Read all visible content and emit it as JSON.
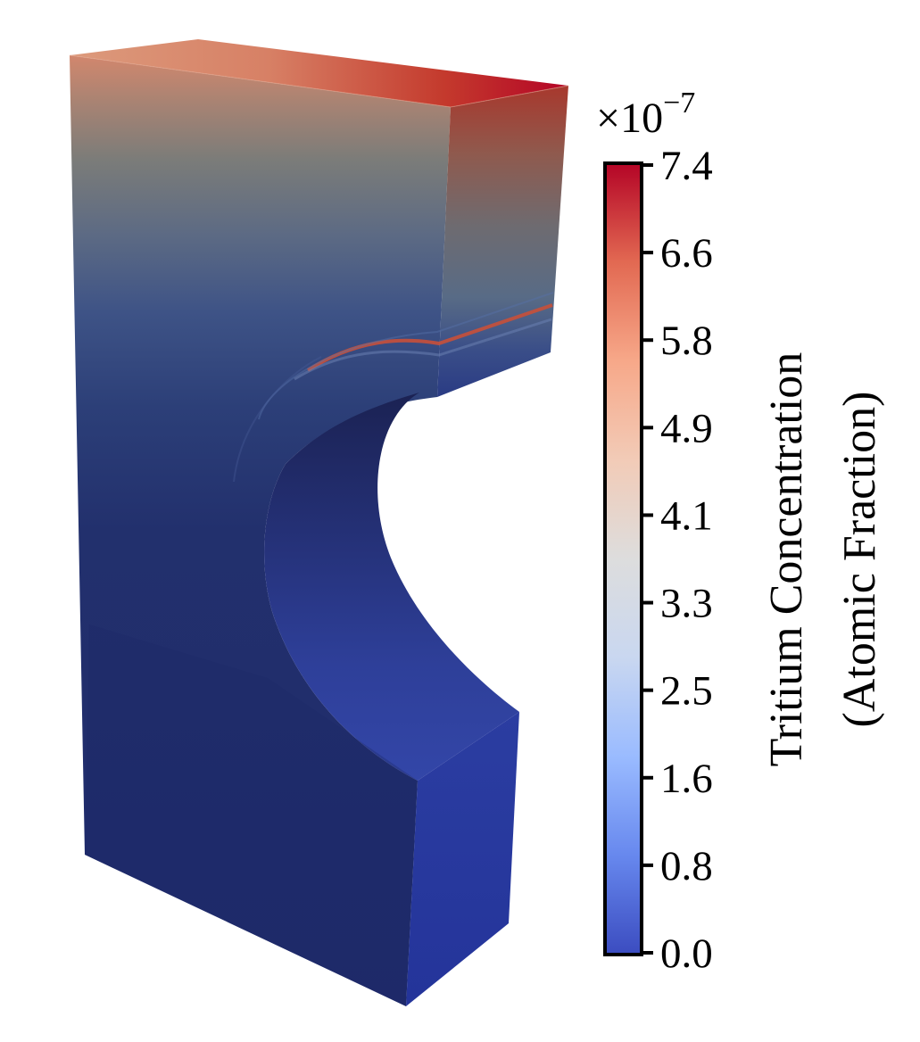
{
  "figure": {
    "colorbar": {
      "multiplier_base": "×10",
      "multiplier_exponent": "−7",
      "title_line1": "Tritium Concentration",
      "title_line2": "(Atomic Fraction)",
      "range": [
        0.0,
        7.4
      ],
      "ticks": [
        "7.4",
        "6.6",
        "5.8",
        "4.9",
        "4.1",
        "3.3",
        "2.5",
        "1.6",
        "0.8",
        "0.0"
      ],
      "colormap": "coolwarm",
      "colors": [
        "#3b4cc0",
        "#6788ee",
        "#9abbff",
        "#c9d7f0",
        "#dddddd",
        "#f2cbb7",
        "#f7a889",
        "#e26952",
        "#b40426"
      ]
    },
    "specimen": {
      "description_colors": {
        "top_high": "#b40426",
        "mid": "#7a7a80",
        "bottom_low": "#1f2a6b"
      }
    }
  }
}
